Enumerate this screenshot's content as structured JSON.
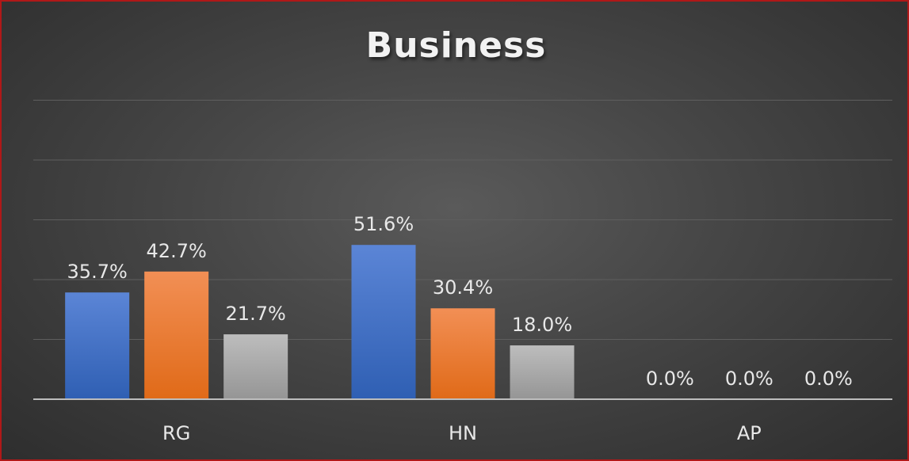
{
  "chart_data": {
    "type": "bar",
    "title": "Business",
    "categories": [
      "RG",
      "HN",
      "AP"
    ],
    "series": [
      {
        "values": [
          35.7,
          51.6,
          0.0
        ],
        "labels": [
          "35.7%",
          "51.6%",
          "0.0%"
        ],
        "color": "#4472c4"
      },
      {
        "values": [
          42.7,
          30.4,
          0.0
        ],
        "labels": [
          "42.7%",
          "30.4%",
          "0.0%"
        ],
        "color": "#ed7d31"
      },
      {
        "values": [
          21.7,
          18.0,
          0.0
        ],
        "labels": [
          "21.7%",
          "18.0%",
          "0.0%"
        ],
        "color": "#a5a5a5"
      }
    ],
    "ylim": [
      0,
      120
    ],
    "grid": true,
    "legend": "none",
    "xlabel": "",
    "ylabel": ""
  }
}
